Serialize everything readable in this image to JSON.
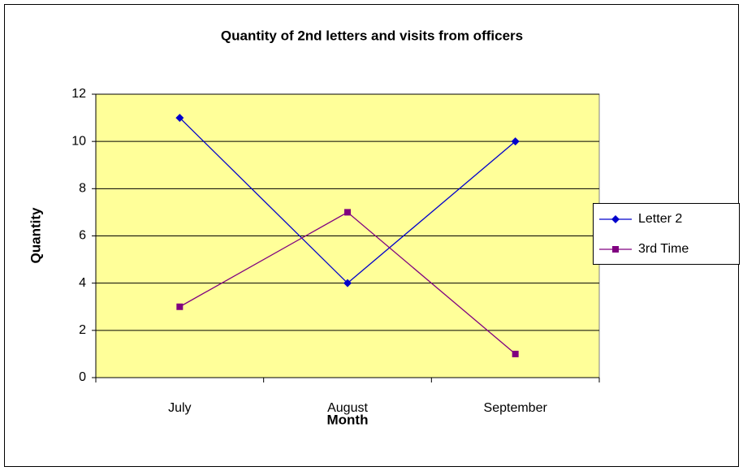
{
  "chart_data": {
    "type": "line",
    "title": "Quantity of 2nd letters and visits from officers",
    "x_label": "Month",
    "y_label": "Quantity",
    "categories": [
      "July",
      "August",
      "September"
    ],
    "series": [
      {
        "name": "Letter 2",
        "color": "#0000cc",
        "marker": "diamond",
        "values": [
          11,
          4,
          10
        ]
      },
      {
        "name": "3rd Time",
        "color": "#800080",
        "marker": "square",
        "values": [
          3,
          7,
          1
        ]
      }
    ],
    "ylim": [
      0,
      12
    ],
    "yticks": [
      0,
      2,
      4,
      6,
      8,
      10,
      12
    ],
    "grid": true,
    "plot_background": "#ffff99",
    "legend": "right"
  }
}
